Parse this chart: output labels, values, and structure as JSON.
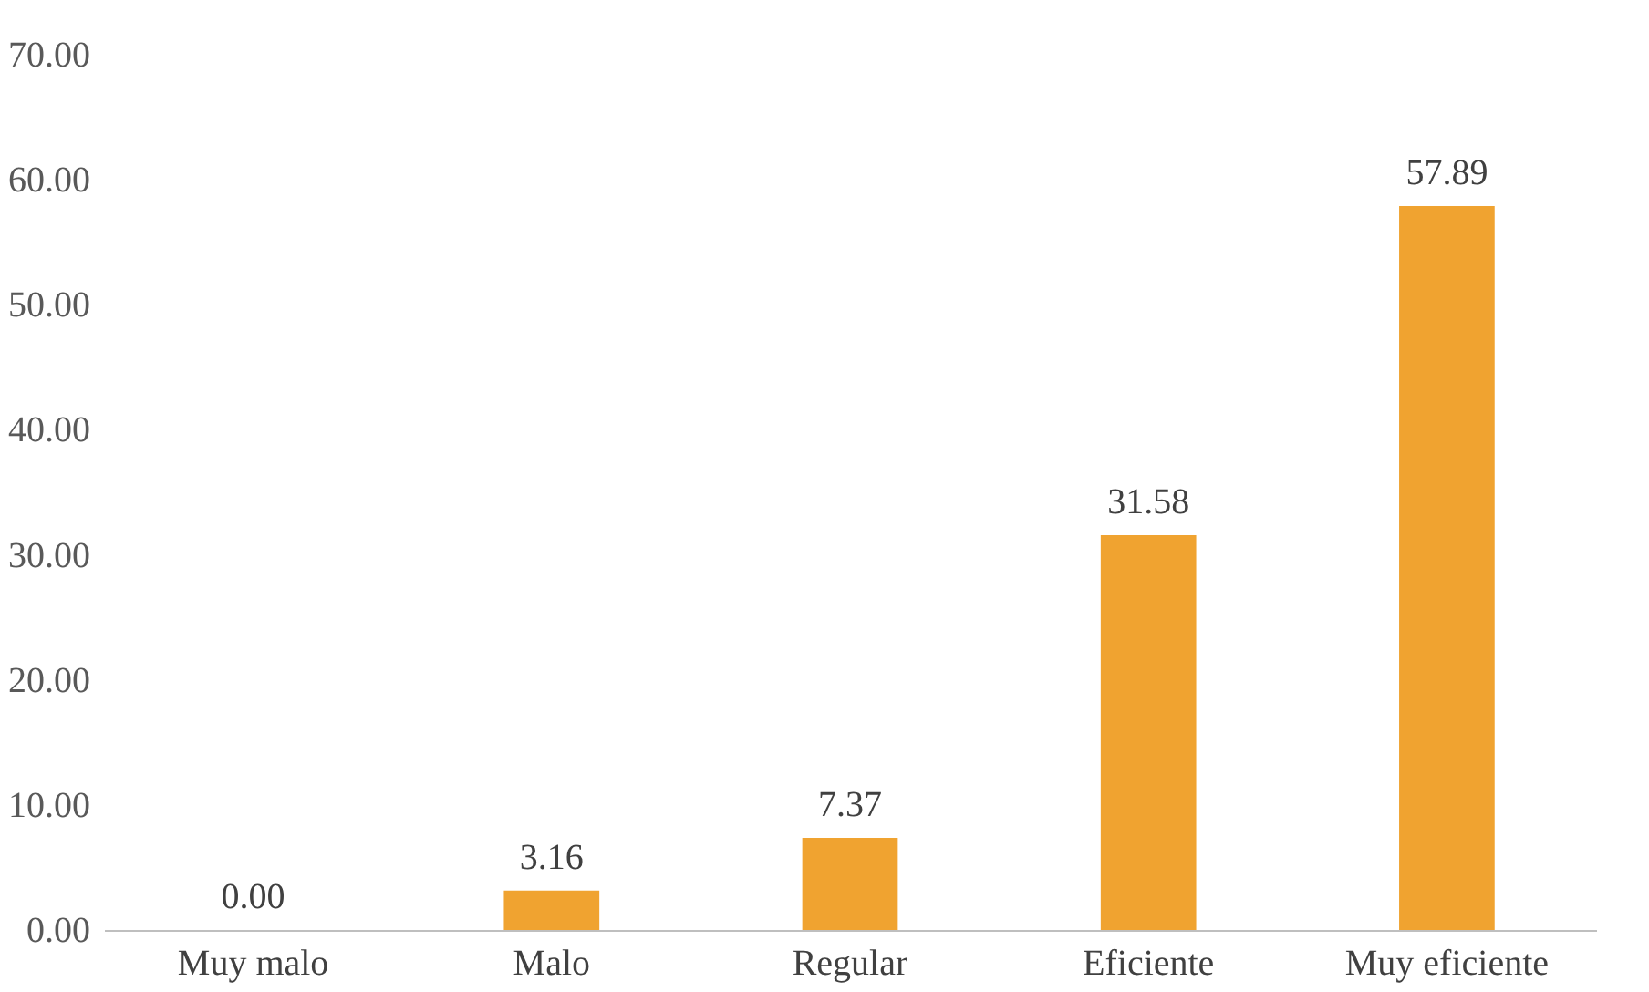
{
  "chart_data": {
    "type": "bar",
    "categories": [
      "Muy malo",
      "Malo",
      "Regular",
      "Eficiente",
      "Muy eficiente"
    ],
    "values": [
      0,
      3.16,
      7.37,
      31.58,
      57.89
    ],
    "value_labels": [
      "0.00",
      "3.16",
      "7.37",
      "31.58",
      "57.89"
    ],
    "color": "#f0a330",
    "ylim": [
      0,
      70
    ],
    "yticks": [
      {
        "value": 0,
        "label": "0.00"
      },
      {
        "value": 10,
        "label": "10.00"
      },
      {
        "value": 20,
        "label": "20.00"
      },
      {
        "value": 30,
        "label": "30.00"
      },
      {
        "value": 40,
        "label": "40.00"
      },
      {
        "value": 50,
        "label": "50.00"
      },
      {
        "value": 60,
        "label": "60.00"
      },
      {
        "value": 70,
        "label": "70.00"
      }
    ],
    "grid": false
  }
}
